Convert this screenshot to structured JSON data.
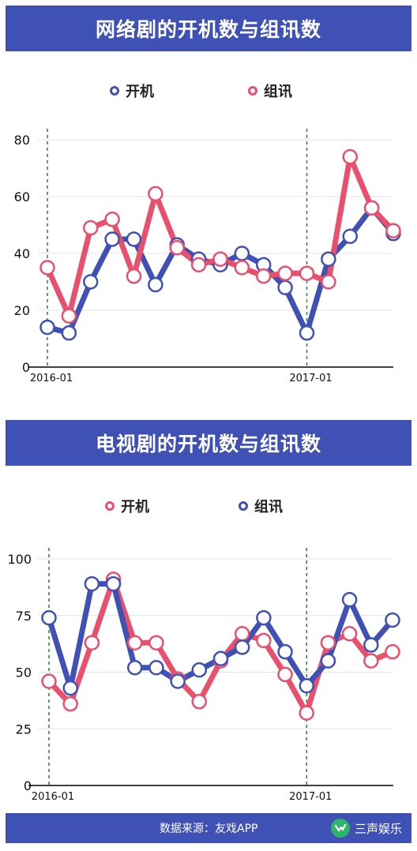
{
  "colors": {
    "banner": "#3f51b5",
    "blue_series": "#3f51b5",
    "red_series": "#e8506e",
    "marker_fill": "#ffffff",
    "marker_stroke_blue": "#3f51b5",
    "marker_stroke_red": "#e8506e",
    "grid": "#e3e3e3",
    "axis": "#000000",
    "marker_line": "#1a8a2a",
    "brand_logo": "#2fb46e"
  },
  "chart1": {
    "title": "网络剧的开机数与组讯数",
    "legend": [
      {
        "label": "开机",
        "color": "#3f51b5"
      },
      {
        "label": "组讯",
        "color": "#e8506e"
      }
    ]
  },
  "chart2": {
    "title": "电视剧的开机数与组讯数",
    "legend": [
      {
        "label": "开机",
        "color": "#e8506e"
      },
      {
        "label": "组讯",
        "color": "#3f51b5"
      }
    ]
  },
  "footer": {
    "source": "数据来源：友戏APP",
    "brand": "三声娱乐",
    "logo_icon": "chevron-check-icon"
  },
  "chart_data": [
    {
      "type": "line",
      "title": "网络剧的开机数与组讯数",
      "x": [
        "2016-01",
        "2016-02",
        "2016-03",
        "2016-04",
        "2016-05",
        "2016-06",
        "2016-07",
        "2016-08",
        "2016-09",
        "2016-10",
        "2016-11",
        "2016-12",
        "2017-01",
        "2017-02",
        "2017-03",
        "2017-04",
        "2017-05"
      ],
      "x_tick_labels": [
        "2016-01",
        "2017-01"
      ],
      "x_markers": [
        "2016-01",
        "2017-01"
      ],
      "ylim": [
        0,
        80
      ],
      "yticks": [
        0,
        20,
        40,
        60,
        80
      ],
      "grid": true,
      "legend_position": "top",
      "series": [
        {
          "name": "开机",
          "color": "#3f51b5",
          "values": [
            14,
            12,
            30,
            45,
            45,
            29,
            43,
            38,
            36,
            40,
            36,
            28,
            12,
            38,
            46,
            56,
            47
          ]
        },
        {
          "name": "组讯",
          "color": "#e8506e",
          "values": [
            35,
            18,
            49,
            52,
            32,
            61,
            42,
            36,
            38,
            35,
            32,
            33,
            33,
            30,
            74,
            56,
            48
          ]
        }
      ]
    },
    {
      "type": "line",
      "title": "电视剧的开机数与组讯数",
      "x": [
        "2016-01",
        "2016-02",
        "2016-03",
        "2016-04",
        "2016-05",
        "2016-06",
        "2016-07",
        "2016-08",
        "2016-09",
        "2016-10",
        "2016-11",
        "2016-12",
        "2017-01",
        "2017-02",
        "2017-03",
        "2017-04",
        "2017-05"
      ],
      "x_tick_labels": [
        "2016-01",
        "2017-01"
      ],
      "x_markers": [
        "2016-01",
        "2017-01"
      ],
      "ylim": [
        0,
        100
      ],
      "yticks": [
        0,
        25,
        50,
        75,
        100
      ],
      "grid": true,
      "legend_position": "top",
      "series": [
        {
          "name": "开机",
          "color": "#e8506e",
          "values": [
            46,
            36,
            63,
            91,
            63,
            63,
            47,
            37,
            55,
            67,
            64,
            49,
            32,
            63,
            67,
            55,
            59
          ]
        },
        {
          "name": "组讯",
          "color": "#3f51b5",
          "values": [
            74,
            43,
            89,
            89,
            52,
            52,
            46,
            51,
            56,
            61,
            74,
            59,
            44,
            55,
            82,
            62,
            73
          ]
        }
      ]
    }
  ]
}
